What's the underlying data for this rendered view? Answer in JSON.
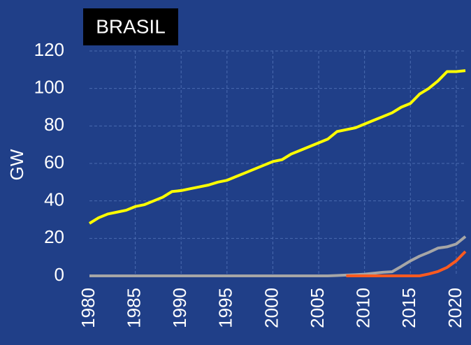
{
  "chart_data": {
    "type": "line",
    "title": "BRASIL",
    "y_label": "GW",
    "x": [
      1980,
      1981,
      1982,
      1983,
      1984,
      1985,
      1986,
      1987,
      1988,
      1989,
      1990,
      1991,
      1992,
      1993,
      1994,
      1995,
      1996,
      1997,
      1998,
      1999,
      2000,
      2001,
      2002,
      2003,
      2004,
      2005,
      2006,
      2007,
      2008,
      2009,
      2010,
      2011,
      2012,
      2013,
      2014,
      2015,
      2016,
      2017,
      2018,
      2019,
      2020,
      2021
    ],
    "series": [
      {
        "color": "#ffff00",
        "values": [
          28,
          31,
          33,
          34,
          35,
          37,
          38,
          40,
          42,
          45,
          45.5,
          46.5,
          47.5,
          48.5,
          50,
          51,
          53,
          55,
          57,
          59,
          61,
          62,
          65,
          67,
          69,
          71,
          73,
          77,
          78,
          79,
          81,
          83,
          85,
          87,
          90,
          92,
          97,
          100,
          104,
          109,
          109,
          109.5
        ]
      },
      {
        "color": "#a6a6a6",
        "values": [
          0,
          0,
          0,
          0,
          0,
          0,
          0,
          0,
          0,
          0,
          0,
          0,
          0,
          0,
          0,
          0,
          0,
          0,
          0,
          0,
          0,
          0,
          0,
          0,
          0,
          0,
          0,
          0.2,
          0.4,
          0.6,
          0.9,
          1.4,
          1.9,
          2.2,
          5,
          8,
          10.5,
          12.5,
          14.8,
          15.5,
          17,
          21
        ]
      },
      {
        "color": "#ff5a1f",
        "values": [
          null,
          null,
          null,
          null,
          null,
          null,
          null,
          null,
          null,
          null,
          null,
          null,
          null,
          null,
          null,
          null,
          null,
          null,
          null,
          null,
          null,
          null,
          null,
          null,
          null,
          null,
          null,
          null,
          0,
          0,
          0,
          0,
          0,
          0,
          0,
          0,
          0,
          1,
          2.3,
          4.5,
          8,
          13
        ]
      }
    ],
    "xlim": [
      1980,
      2021
    ],
    "xticks": [
      1980,
      1985,
      1990,
      1995,
      2000,
      2005,
      2010,
      2015,
      2020
    ],
    "ylim": [
      0,
      120
    ],
    "yticks": [
      0,
      20,
      40,
      60,
      80,
      100,
      120
    ],
    "grid": true
  }
}
